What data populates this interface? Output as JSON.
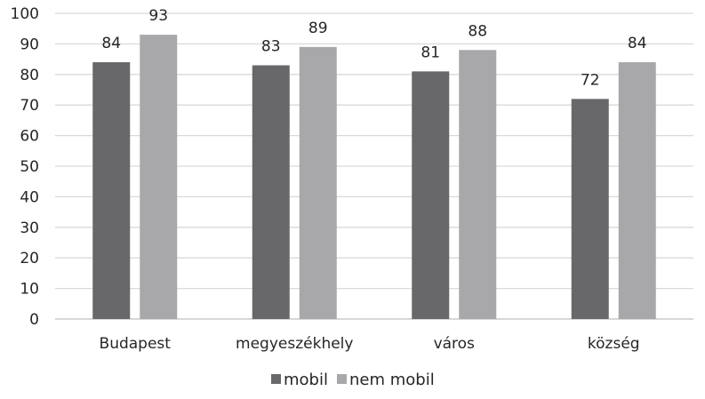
{
  "chart_data": {
    "type": "bar",
    "title": "",
    "xlabel": "",
    "ylabel": "",
    "categories": [
      "Budapest",
      "megyeszékhely",
      "város",
      "község"
    ],
    "series": [
      {
        "name": "mobil",
        "values": [
          84,
          83,
          81,
          72
        ],
        "color": "#68686b"
      },
      {
        "name": "nem mobil",
        "values": [
          93,
          89,
          88,
          84
        ],
        "color": "#a8a8aa"
      }
    ],
    "ylim": [
      0,
      100
    ],
    "yticks": [
      0,
      10,
      20,
      30,
      40,
      50,
      60,
      70,
      80,
      90,
      100
    ],
    "grid": true,
    "legend_position": "bottom",
    "data_labels": true
  }
}
